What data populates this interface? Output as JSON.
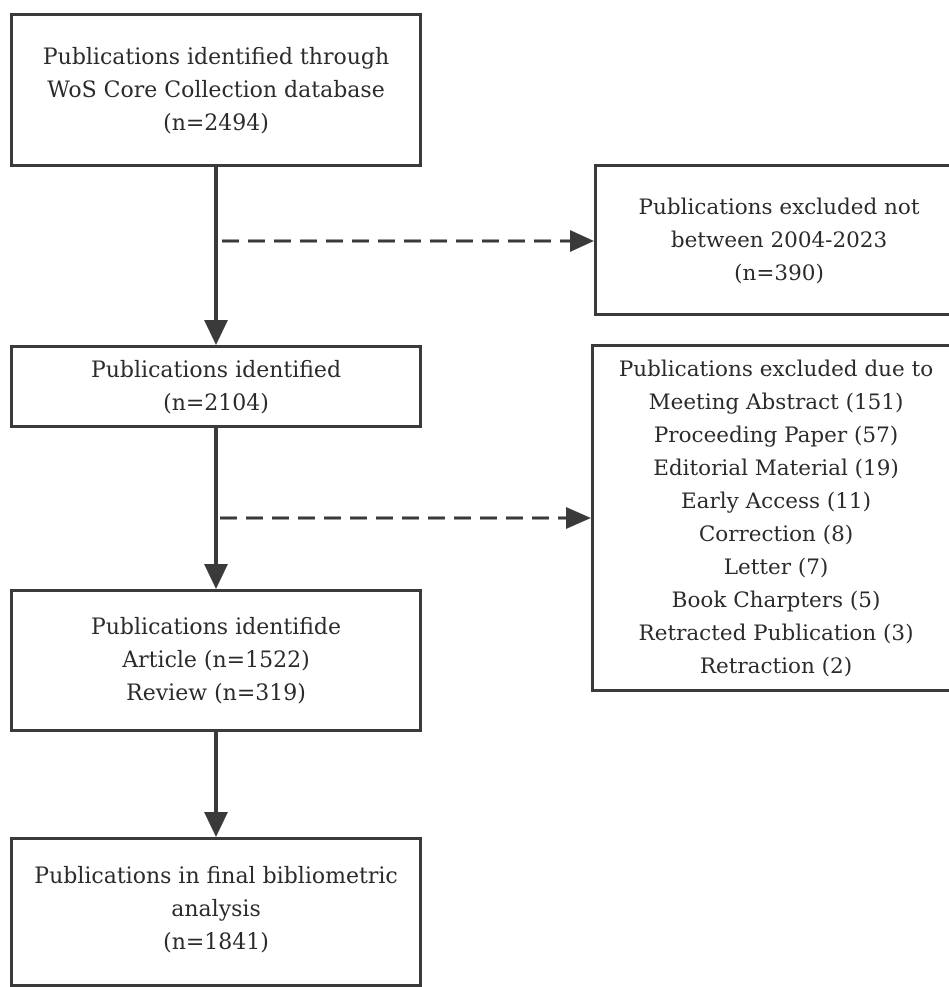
{
  "main_flow": [
    {
      "lines": [
        "Publications identified through",
        "WoS Core Collection database",
        "(n=2494)"
      ]
    },
    {
      "lines": [
        "Publications identified",
        "(n=2104)"
      ]
    },
    {
      "lines": [
        "Publications identifide",
        "Article (n=1522)",
        "Review (n=319)"
      ]
    },
    {
      "lines": [
        "Publications in final  bibliometric",
        "analysis",
        "(n=1841)"
      ]
    }
  ],
  "exclusions": [
    {
      "lines": [
        "Publications excluded  not",
        "between 2004-2023",
        "(n=390)"
      ]
    },
    {
      "lines": [
        "Publications excluded due to",
        "Meeting Abstract (151)",
        "Proceeding Paper (57)",
        "Editorial Material (19)",
        "Early Access (11)",
        "Correction (8)",
        "Letter (7)",
        "Book Charpters (5)",
        "Retracted Publication (3)",
        "Retraction (2)"
      ]
    }
  ]
}
